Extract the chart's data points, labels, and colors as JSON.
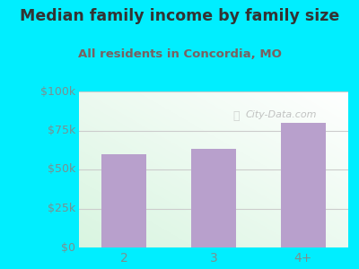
{
  "categories": [
    "2",
    "3",
    "4+"
  ],
  "values": [
    60000,
    63000,
    80000
  ],
  "bar_color": "#b8a0cc",
  "title": "Median family income by family size",
  "subtitle": "All residents in Concordia, MO",
  "title_color": "#333333",
  "subtitle_color": "#7a6060",
  "bg_color": "#00eeff",
  "ylim": [
    0,
    100000
  ],
  "yticks": [
    0,
    25000,
    50000,
    75000,
    100000
  ],
  "ytick_labels": [
    "$0",
    "$25k",
    "$50k",
    "$75k",
    "$100k"
  ],
  "watermark": "City-Data.com",
  "grid_color": "#cccccc",
  "tick_label_color": "#7a9090"
}
